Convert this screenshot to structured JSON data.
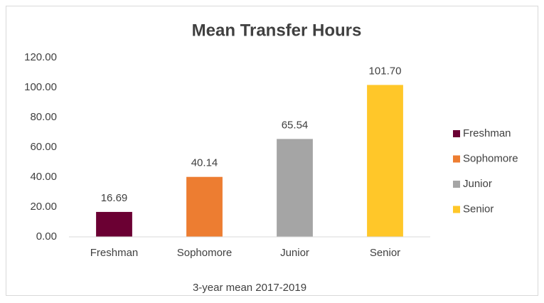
{
  "chart_data": {
    "type": "bar",
    "title": "Mean Transfer Hours",
    "categories": [
      "Freshman",
      "Sophomore",
      "Junior",
      "Senior"
    ],
    "values": [
      16.69,
      40.14,
      65.54,
      101.7
    ],
    "value_labels": [
      "16.69",
      "40.14",
      "65.54",
      "101.70"
    ],
    "colors": [
      "#6b0033",
      "#ed7d31",
      "#a5a5a5",
      "#ffc729"
    ],
    "xlabel": "3-year mean 2017-2019",
    "ylim": [
      0,
      120
    ],
    "yticks": [
      {
        "value": 0,
        "label": "0.00"
      },
      {
        "value": 20,
        "label": "20.00"
      },
      {
        "value": 40,
        "label": "40.00"
      },
      {
        "value": 60,
        "label": "60.00"
      },
      {
        "value": 80,
        "label": "80.00"
      },
      {
        "value": 100,
        "label": "100.00"
      },
      {
        "value": 120,
        "label": "120.00"
      }
    ],
    "grid": false,
    "legend": "right"
  }
}
